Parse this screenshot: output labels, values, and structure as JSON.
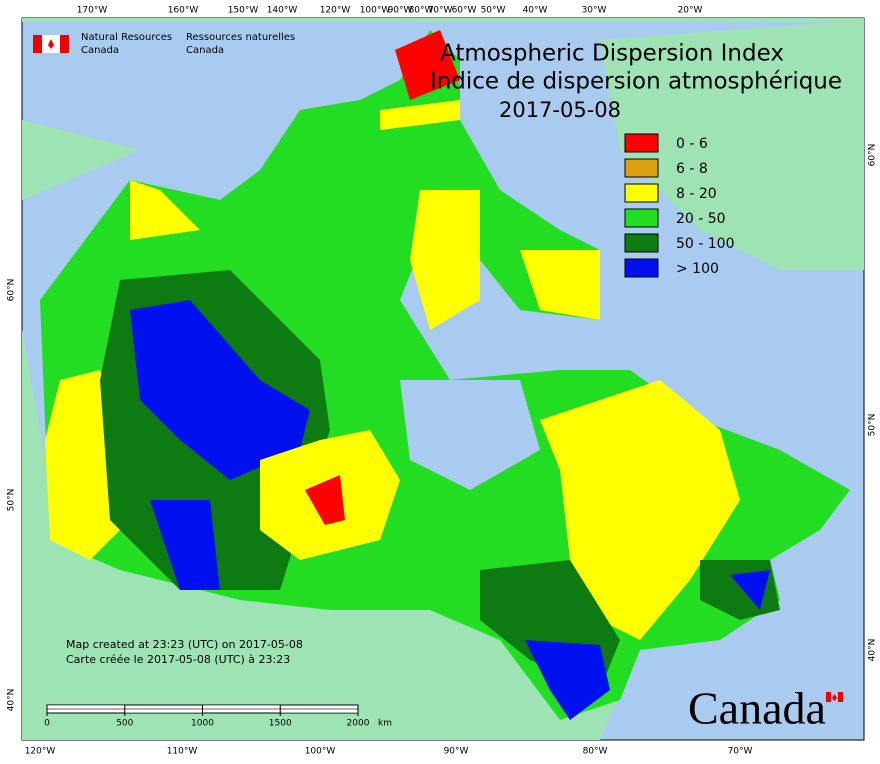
{
  "header": {
    "agency_en": "Natural Resources",
    "agency_en_2": "Canada",
    "agency_fr": "Ressources naturelles",
    "agency_fr_2": "Canada"
  },
  "title": [
    "Atmospheric Dispersion Index",
    "Indice de dispersion atmosphérique"
  ],
  "date": "2017-05-08",
  "legend": [
    {
      "label": "0 - 6",
      "color": "#ff0000"
    },
    {
      "label": "6 - 8",
      "color": "#d9a010"
    },
    {
      "label": "8 - 20",
      "color": "#ffff00"
    },
    {
      "label": "20 - 50",
      "color": "#22dd22"
    },
    {
      "label": "50 - 100",
      "color": "#0e7a12"
    },
    {
      "label": "> 100",
      "color": "#0010ee"
    }
  ],
  "graticule": {
    "top": [
      "170°W",
      "160°W",
      "150°W",
      "140°W",
      "120°W",
      "100°W",
      "90°W",
      "80°W",
      "70°W",
      "60°W",
      "50°W",
      "40°W",
      "30°W",
      "20°W"
    ],
    "bottom": [
      "120°W",
      "110°W",
      "100°W",
      "90°W",
      "80°W",
      "70°W"
    ],
    "left": [
      "60°N",
      "50°N",
      "40°N"
    ],
    "right": [
      "60°N",
      "50°N",
      "40°N"
    ]
  },
  "credits": [
    "Map created at 23:23 (UTC) on 2017-05-08",
    "Carte créée le 2017-05-08 (UTC) à 23:23"
  ],
  "scale_bar": {
    "ticks": [
      0,
      500,
      1000,
      1500,
      2000
    ],
    "unit": "km"
  },
  "wordmark": "Canada"
}
